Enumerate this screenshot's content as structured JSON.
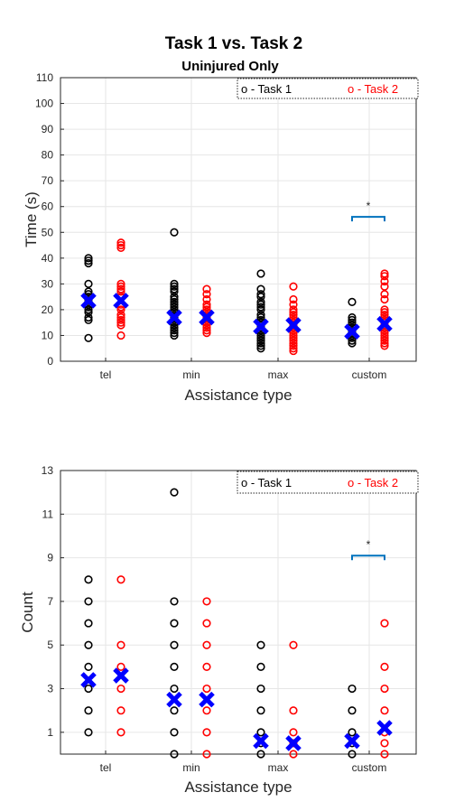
{
  "chart_data": [
    {
      "type": "scatter",
      "title": "Task 1 vs. Task 2",
      "subtitle": "Uninjured Only",
      "xlabel": "Assistance type",
      "ylabel": "Time (s)",
      "categories": [
        "tel",
        "min",
        "max",
        "custom"
      ],
      "ylim": [
        0,
        110
      ],
      "yticks": [
        "0",
        "10",
        "20",
        "30",
        "40",
        "50",
        "60",
        "70",
        "80",
        "90",
        "100",
        "110"
      ],
      "grid": true,
      "legend": {
        "position": "top-right",
        "entries": [
          "o - Task 1",
          "o - Task 2"
        ]
      },
      "colors": {
        "task1": "#000000",
        "task2": "#ff0000",
        "mean": "#0000ff",
        "significance": "#0072bd"
      },
      "series": [
        {
          "name": "Task 1",
          "values": [
            [
              9,
              16,
              17,
              19,
              20,
              21,
              22,
              23,
              24,
              25,
              26,
              27,
              30,
              38,
              39,
              40
            ],
            [
              10,
              11,
              12,
              13,
              14,
              15,
              16,
              17,
              18,
              19,
              20,
              21,
              22,
              23,
              24,
              25,
              27,
              28,
              29,
              30,
              50
            ],
            [
              5,
              6,
              7,
              8,
              9,
              10,
              11,
              12,
              13,
              14,
              15,
              16,
              17,
              18,
              20,
              21,
              22,
              23,
              25,
              26,
              28,
              34
            ],
            [
              7,
              8,
              9,
              10,
              11,
              12,
              13,
              14,
              15,
              16,
              17,
              23
            ]
          ]
        },
        {
          "name": "Task 2",
          "values": [
            [
              10,
              14,
              15,
              16,
              17,
              18,
              20,
              21,
              22,
              25,
              27,
              28,
              29,
              30,
              44,
              45,
              46
            ],
            [
              11,
              12,
              13,
              14,
              15,
              16,
              17,
              18,
              19,
              20,
              21,
              22,
              24,
              26,
              28
            ],
            [
              4,
              5,
              6,
              7,
              8,
              9,
              10,
              11,
              12,
              13,
              14,
              15,
              16,
              17,
              18,
              19,
              20,
              22,
              24,
              29
            ],
            [
              6,
              7,
              8,
              9,
              10,
              11,
              12,
              13,
              14,
              15,
              16,
              17,
              18,
              19,
              20,
              24,
              26,
              29,
              31,
              33,
              34
            ]
          ]
        }
      ],
      "means": {
        "Task 1": [
          23.5,
          17,
          13.5,
          11.5
        ],
        "Task 2": [
          23.5,
          17,
          14,
          14.5
        ]
      },
      "significance": [
        {
          "category": "custom",
          "marker": "*",
          "y": 56
        }
      ]
    },
    {
      "type": "scatter",
      "title": "",
      "xlabel": "Assistance type",
      "ylabel": "Count",
      "categories": [
        "tel",
        "min",
        "max",
        "custom"
      ],
      "ylim": [
        0,
        13
      ],
      "yticks": [
        "1",
        "3",
        "5",
        "7",
        "9",
        "11",
        "13"
      ],
      "grid": true,
      "legend": {
        "position": "top-right",
        "entries": [
          "o - Task 1",
          "o - Task 2"
        ]
      },
      "series": [
        {
          "name": "Task 1",
          "values": [
            [
              1,
              2,
              3,
              4,
              5,
              6,
              7,
              8
            ],
            [
              0,
              1,
              2,
              3,
              4,
              5,
              6,
              7,
              12
            ],
            [
              0,
              0.5,
              1,
              2,
              3,
              4,
              5
            ],
            [
              0,
              0.5,
              1,
              2,
              3
            ]
          ]
        },
        {
          "name": "Task 2",
          "values": [
            [
              1,
              2,
              3,
              4,
              5,
              8
            ],
            [
              0,
              1,
              2,
              3,
              4,
              5,
              6,
              7
            ],
            [
              0,
              0.5,
              1,
              2,
              5
            ],
            [
              0,
              0.5,
              1,
              2,
              3,
              4,
              6
            ]
          ]
        }
      ],
      "means": {
        "Task 1": [
          3.4,
          2.5,
          0.6,
          0.6
        ],
        "Task 2": [
          3.6,
          2.5,
          0.5,
          1.2
        ]
      },
      "significance": [
        {
          "category": "custom",
          "marker": "*",
          "y": 9.1
        }
      ]
    }
  ]
}
